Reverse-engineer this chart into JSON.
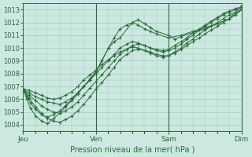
{
  "title": "Pression niveau de la mer( hPa )",
  "background_color": "#cce8e0",
  "grid_color": "#99ccbb",
  "line_color": "#2d6b3c",
  "ylim": [
    1003.5,
    1013.5
  ],
  "yticks": [
    1004,
    1005,
    1006,
    1007,
    1008,
    1009,
    1010,
    1011,
    1012,
    1013
  ],
  "xtick_labels": [
    "Jeu",
    "Ven",
    "Sam",
    "Dim"
  ],
  "xtick_positions": [
    0,
    1,
    2,
    3
  ],
  "xlim": [
    0,
    3
  ],
  "series": [
    {
      "x": [
        0.0,
        0.08,
        0.17,
        0.25,
        0.33,
        0.42,
        0.5,
        0.58,
        0.67,
        0.75,
        0.83,
        0.92,
        1.0,
        1.08,
        1.17,
        1.25,
        1.33,
        1.42,
        1.5,
        1.58,
        1.67,
        1.75,
        1.83,
        1.92,
        2.0,
        2.08,
        2.17,
        2.25,
        2.33,
        2.42,
        2.5,
        2.58,
        2.67,
        2.75,
        2.83,
        2.92,
        3.0
      ],
      "y": [
        1006.8,
        1006.5,
        1006.2,
        1006.0,
        1005.8,
        1005.7,
        1005.6,
        1005.8,
        1006.1,
        1006.5,
        1007.0,
        1007.5,
        1008.0,
        1008.5,
        1009.0,
        1009.5,
        1010.0,
        1010.3,
        1010.5,
        1010.4,
        1010.2,
        1010.0,
        1009.9,
        1009.8,
        1009.9,
        1010.2,
        1010.5,
        1010.8,
        1011.2,
        1011.5,
        1011.8,
        1012.1,
        1012.4,
        1012.7,
        1012.9,
        1013.1,
        1013.2
      ]
    },
    {
      "x": [
        0.0,
        0.08,
        0.17,
        0.25,
        0.33,
        0.42,
        0.5,
        0.58,
        0.67,
        0.75,
        0.83,
        0.92,
        1.0,
        1.08,
        1.17,
        1.25,
        1.33,
        1.42,
        1.5,
        1.58,
        1.67,
        1.75,
        1.83,
        1.92,
        2.0,
        2.08,
        2.17,
        2.25,
        2.33,
        2.42,
        2.5,
        2.58,
        2.67,
        2.75,
        2.83,
        2.92,
        3.0
      ],
      "y": [
        1006.8,
        1006.3,
        1005.9,
        1005.5,
        1005.2,
        1005.0,
        1004.9,
        1005.1,
        1005.4,
        1005.8,
        1006.3,
        1006.9,
        1007.4,
        1007.9,
        1008.5,
        1009.0,
        1009.5,
        1009.9,
        1010.2,
        1010.3,
        1010.2,
        1010.0,
        1009.8,
        1009.7,
        1009.8,
        1010.0,
        1010.3,
        1010.7,
        1011.0,
        1011.4,
        1011.7,
        1012.0,
        1012.3,
        1012.6,
        1012.8,
        1013.0,
        1013.1
      ]
    },
    {
      "x": [
        0.0,
        0.08,
        0.17,
        0.25,
        0.33,
        0.42,
        0.5,
        0.58,
        0.67,
        0.75,
        0.83,
        0.92,
        1.0,
        1.08,
        1.17,
        1.25,
        1.33,
        1.42,
        1.5,
        1.58,
        1.67,
        1.75,
        1.83,
        1.92,
        2.0,
        2.08,
        2.17,
        2.25,
        2.33,
        2.42,
        2.5,
        2.58,
        2.67,
        2.75,
        2.83,
        2.92,
        3.0
      ],
      "y": [
        1006.8,
        1006.1,
        1005.4,
        1004.9,
        1004.5,
        1004.3,
        1004.2,
        1004.4,
        1004.7,
        1005.1,
        1005.6,
        1006.2,
        1006.8,
        1007.3,
        1007.9,
        1008.5,
        1009.1,
        1009.5,
        1009.8,
        1009.9,
        1009.8,
        1009.6,
        1009.4,
        1009.3,
        1009.4,
        1009.7,
        1010.0,
        1010.4,
        1010.7,
        1011.1,
        1011.4,
        1011.7,
        1012.0,
        1012.3,
        1012.6,
        1012.8,
        1013.0
      ]
    },
    {
      "x": [
        0.0,
        0.05,
        0.1,
        0.17,
        0.25,
        0.33,
        0.42,
        0.5,
        0.58,
        0.67,
        0.75,
        0.83,
        0.92,
        1.0,
        1.08,
        1.17,
        1.25,
        1.33,
        1.5,
        1.58,
        1.67,
        1.75,
        1.83,
        2.0,
        2.08,
        2.17,
        2.33,
        2.5,
        2.67,
        2.83,
        3.0
      ],
      "y": [
        1006.8,
        1006.0,
        1005.3,
        1004.7,
        1004.3,
        1004.1,
        1004.5,
        1004.9,
        1005.4,
        1005.9,
        1006.4,
        1007.0,
        1007.5,
        1008.1,
        1009.0,
        1010.0,
        1010.5,
        1010.8,
        1012.0,
        1012.2,
        1011.9,
        1011.6,
        1011.3,
        1011.0,
        1010.7,
        1010.9,
        1011.2,
        1011.5,
        1011.9,
        1012.3,
        1013.0
      ]
    },
    {
      "x": [
        0.0,
        0.05,
        0.1,
        0.17,
        0.25,
        0.33,
        0.42,
        0.5,
        0.58,
        0.67,
        0.75,
        0.83,
        0.92,
        1.0,
        1.08,
        1.17,
        1.25,
        1.33,
        1.42,
        1.5,
        1.58,
        1.67,
        1.75,
        1.83,
        2.0,
        2.17,
        2.33,
        2.5,
        2.67,
        2.83,
        3.0
      ],
      "y": [
        1006.8,
        1006.2,
        1005.7,
        1005.2,
        1004.8,
        1004.6,
        1004.8,
        1005.1,
        1005.5,
        1006.0,
        1006.5,
        1007.0,
        1007.6,
        1008.2,
        1009.0,
        1010.0,
        1010.8,
        1011.5,
        1011.8,
        1012.0,
        1011.8,
        1011.5,
        1011.3,
        1011.1,
        1010.8,
        1011.0,
        1011.3,
        1011.6,
        1011.9,
        1012.3,
        1013.3
      ]
    },
    {
      "x": [
        0.0,
        0.08,
        0.17,
        0.25,
        0.33,
        0.42,
        0.5,
        0.58,
        0.67,
        0.75,
        0.83,
        0.92,
        1.0,
        1.08,
        1.17,
        1.25,
        1.33,
        1.42,
        1.5,
        1.58,
        1.67,
        1.75,
        1.83,
        1.92,
        2.0,
        2.08,
        2.17,
        2.25,
        2.33,
        2.42,
        2.5,
        2.58,
        2.67,
        2.75,
        2.83,
        2.92,
        3.0
      ],
      "y": [
        1006.8,
        1006.7,
        1006.5,
        1006.3,
        1006.1,
        1006.0,
        1006.1,
        1006.3,
        1006.6,
        1007.0,
        1007.5,
        1007.9,
        1008.3,
        1008.7,
        1009.1,
        1009.4,
        1009.7,
        1009.9,
        1010.1,
        1010.0,
        1009.8,
        1009.7,
        1009.5,
        1009.4,
        1009.4,
        1009.6,
        1009.9,
        1010.2,
        1010.5,
        1010.8,
        1011.1,
        1011.4,
        1011.7,
        1012.0,
        1012.3,
        1012.6,
        1013.0
      ]
    }
  ]
}
